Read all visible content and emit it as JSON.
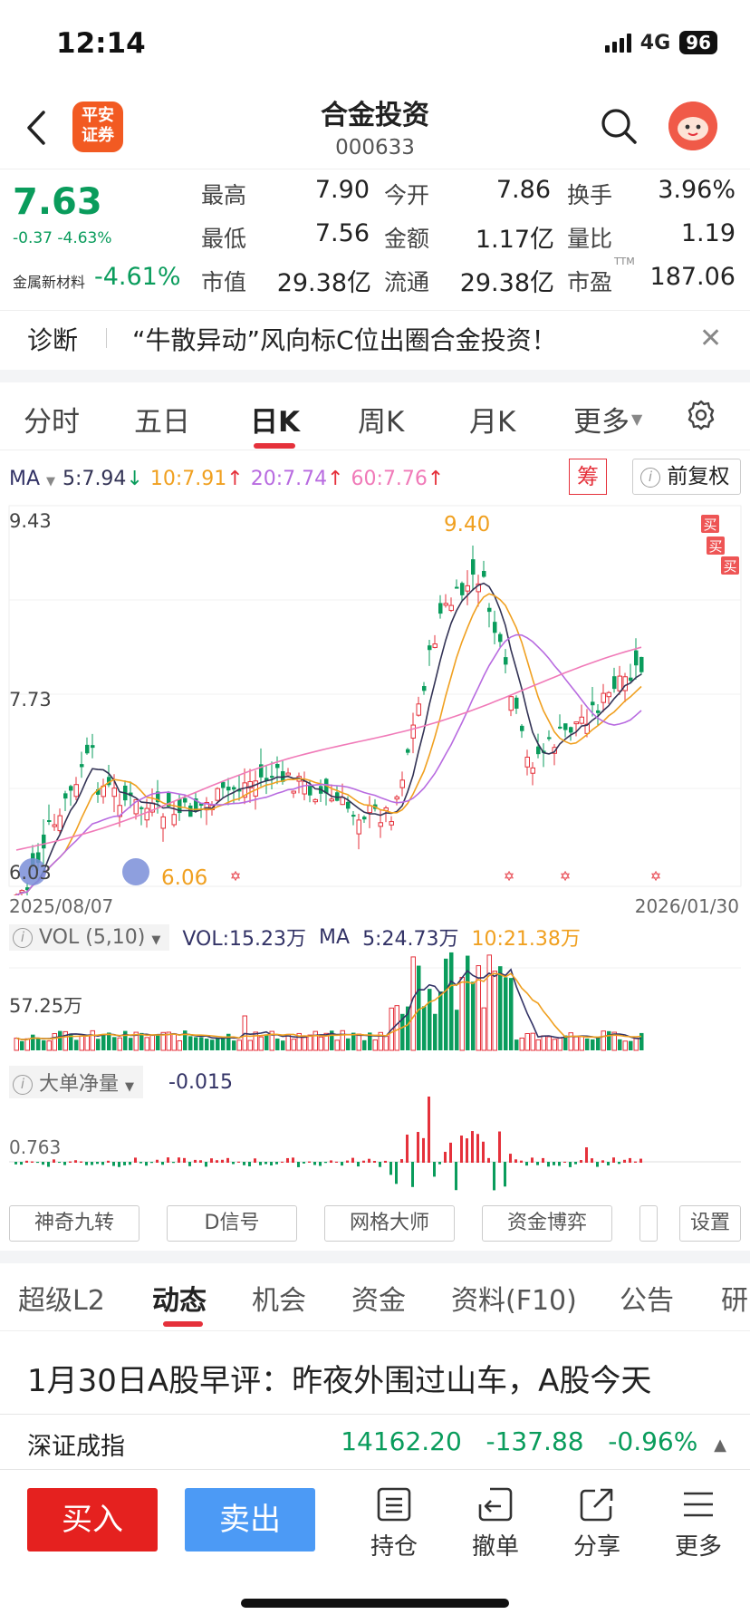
{
  "status": {
    "time": "12:14",
    "network": "4G",
    "battery": "96"
  },
  "header": {
    "logo_line1": "平安",
    "logo_line2": "证券",
    "stock_name": "合金投资",
    "stock_code": "000633"
  },
  "quote": {
    "price": "7.63",
    "change": "-0.37 -4.63%",
    "sector_label": "金属新材料",
    "sector_change": "-4.61%",
    "cells": [
      {
        "label": "最高",
        "value": "7.90"
      },
      {
        "label": "今开",
        "value": "7.86"
      },
      {
        "label": "换手",
        "value": "3.96%"
      },
      {
        "label": "最低",
        "value": "7.56"
      },
      {
        "label": "金额",
        "value": "1.17亿"
      },
      {
        "label": "量比",
        "value": "1.19"
      },
      {
        "label": "市值",
        "value": "29.38亿"
      },
      {
        "label": "流通",
        "value": "29.38亿"
      },
      {
        "label": "市盈",
        "value": "187.06"
      }
    ],
    "pe_superscript": "TTM"
  },
  "diagnosis": {
    "label": "诊断",
    "text": "“牛散异动”风向标C位出圈合金投资！"
  },
  "period_tabs": [
    "分时",
    "五日",
    "日K",
    "周K",
    "月K",
    "更多"
  ],
  "ma": {
    "label": "MA",
    "ma5": "5:7.94",
    "ma10": "10:7.91",
    "ma20": "20:7.74",
    "ma60": "60:7.76",
    "colors": {
      "ma5": "#333355",
      "ma10": "#f0a020",
      "ma20": "#b86be0",
      "ma60": "#f07ab8"
    },
    "chip_label": "筹",
    "adjust_label": "前复权"
  },
  "kline": {
    "y_high_label": "9.43",
    "y_mid_label": "7.73",
    "y_low_label": "6.03",
    "max_annotation": "9.40",
    "min_annotation": "6.06",
    "date_start": "2025/08/07",
    "date_end": "2026/01/30",
    "buy_marker": "买"
  },
  "vol": {
    "selector": "VOL (5,10)",
    "vol": "VOL:15.23万",
    "ma_label": "MA",
    "ma5": "5:24.73万",
    "ma10": "10:21.38万",
    "scale": "57.25万"
  },
  "net": {
    "selector": "大单净量",
    "value": "-0.015",
    "scale": "0.763"
  },
  "tools": [
    "神奇九转",
    "D信号",
    "网格大师",
    "资金博弈",
    "",
    "设置"
  ],
  "info_tabs": [
    "超级L2",
    "动态",
    "机会",
    "资金",
    "资料(F10)",
    "公告",
    "研"
  ],
  "news": {
    "headline": "1月30日A股早评：昨夜外围过山车，A股今天"
  },
  "index": {
    "name": "深证成指",
    "value": "14162.20",
    "change": "-137.88",
    "pct": "-0.96%"
  },
  "bottom": {
    "buy": "买入",
    "sell": "卖出",
    "nav": [
      "持仓",
      "撤单",
      "分享",
      "更多"
    ]
  }
}
